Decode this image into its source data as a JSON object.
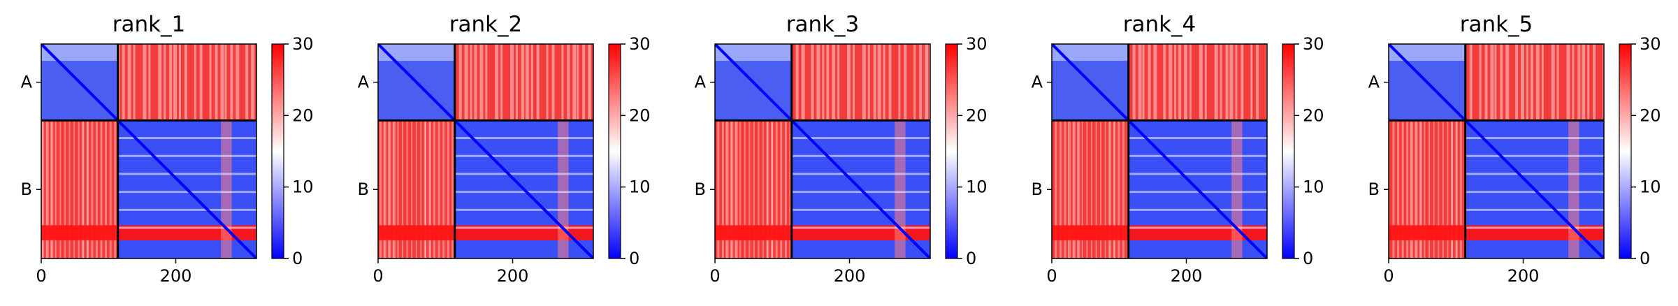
{
  "chart_data": [
    {
      "type": "heatmap",
      "title": "rank_1",
      "chains": [
        "A",
        "B"
      ],
      "chain_lengths": [
        114,
        206
      ],
      "xticks": [
        0,
        200
      ],
      "colorbar_ticks": [
        0,
        10,
        20,
        30
      ],
      "clim": [
        0,
        30
      ],
      "colormap": [
        "#0000ff",
        "#ffffff",
        "#ff0000"
      ]
    },
    {
      "type": "heatmap",
      "title": "rank_2",
      "chains": [
        "A",
        "B"
      ],
      "chain_lengths": [
        114,
        206
      ],
      "xticks": [
        0,
        200
      ],
      "colorbar_ticks": [
        0,
        10,
        20,
        30
      ],
      "clim": [
        0,
        30
      ],
      "colormap": [
        "#0000ff",
        "#ffffff",
        "#ff0000"
      ]
    },
    {
      "type": "heatmap",
      "title": "rank_3",
      "chains": [
        "A",
        "B"
      ],
      "chain_lengths": [
        114,
        206
      ],
      "xticks": [
        0,
        200
      ],
      "colorbar_ticks": [
        0,
        10,
        20,
        30
      ],
      "clim": [
        0,
        30
      ],
      "colormap": [
        "#0000ff",
        "#ffffff",
        "#ff0000"
      ]
    },
    {
      "type": "heatmap",
      "title": "rank_4",
      "chains": [
        "A",
        "B"
      ],
      "chain_lengths": [
        114,
        206
      ],
      "xticks": [
        0,
        200
      ],
      "colorbar_ticks": [
        0,
        10,
        20,
        30
      ],
      "clim": [
        0,
        30
      ],
      "colormap": [
        "#0000ff",
        "#ffffff",
        "#ff0000"
      ]
    },
    {
      "type": "heatmap",
      "title": "rank_5",
      "chains": [
        "A",
        "B"
      ],
      "chain_lengths": [
        114,
        206
      ],
      "xticks": [
        0,
        200
      ],
      "colorbar_ticks": [
        0,
        10,
        20,
        30
      ],
      "clim": [
        0,
        30
      ],
      "colormap": [
        "#0000ff",
        "#ffffff",
        "#ff0000"
      ]
    }
  ]
}
